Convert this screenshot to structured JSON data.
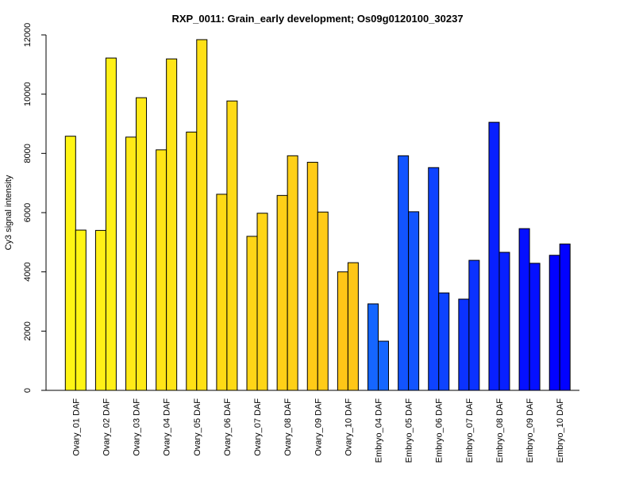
{
  "chart_data": {
    "type": "bar",
    "title": "RXP_0011: Grain_early development; Os09g0120100_30237",
    "xlabel": "",
    "ylabel": "Cy3 signal intensity",
    "ylim": [
      0,
      12000
    ],
    "yticks": [
      0,
      2000,
      4000,
      6000,
      8000,
      10000,
      12000
    ],
    "ytick_labels": [
      "0",
      "2000",
      "4000",
      "6000",
      "8000",
      "10000",
      "12000"
    ],
    "grid": false,
    "categories": [
      "Ovary_01 DAF",
      "Ovary_02 DAF",
      "Ovary_03 DAF",
      "Ovary_04 DAF",
      "Ovary_05 DAF",
      "Ovary_06 DAF",
      "Ovary_07 DAF",
      "Ovary_08 DAF",
      "Ovary_09 DAF",
      "Ovary_10 DAF",
      "Embryo_04 DAF",
      "Embryo_05 DAF",
      "Embryo_06 DAF",
      "Embryo_07 DAF",
      "Embryo_08 DAF",
      "Embryo_09 DAF",
      "Embryo_10 DAF"
    ],
    "series": [
      {
        "values": [
          8580,
          5400,
          8550,
          8120,
          8720,
          6620,
          5200,
          6580,
          7700,
          4000,
          2920,
          7920,
          7520,
          3080,
          9050,
          5460,
          4560
        ]
      },
      {
        "values": [
          5410,
          11220,
          9880,
          11190,
          11840,
          9770,
          5980,
          7920,
          6020,
          4310,
          1660,
          6030,
          3290,
          4390,
          4660,
          4290,
          4940
        ]
      }
    ],
    "bar_colors": [
      "#FFF514",
      "#FFF017",
      "#FFEA17",
      "#FFE517",
      "#FFE015",
      "#FFDA15",
      "#FFD517",
      "#FFD017",
      "#FFCB17",
      "#FFC617",
      "#1566FF",
      "#1254FF",
      "#0E43FF",
      "#0B32FF",
      "#0820FF",
      "#0510FF",
      "#0202FF"
    ]
  }
}
